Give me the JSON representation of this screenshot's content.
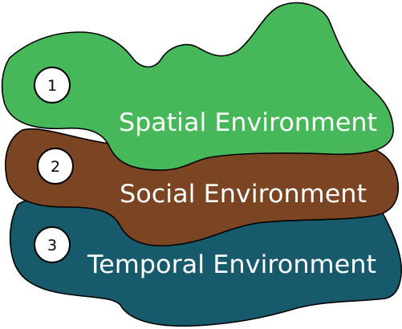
{
  "layers": [
    {
      "number": "1",
      "label": "Spatial Environment",
      "color": "#47b85a"
    },
    {
      "number": "2",
      "label": "Social Environment",
      "color": "#7b4524"
    },
    {
      "number": "3",
      "label": "Temporal Environment",
      "color": "#165a6b"
    }
  ]
}
